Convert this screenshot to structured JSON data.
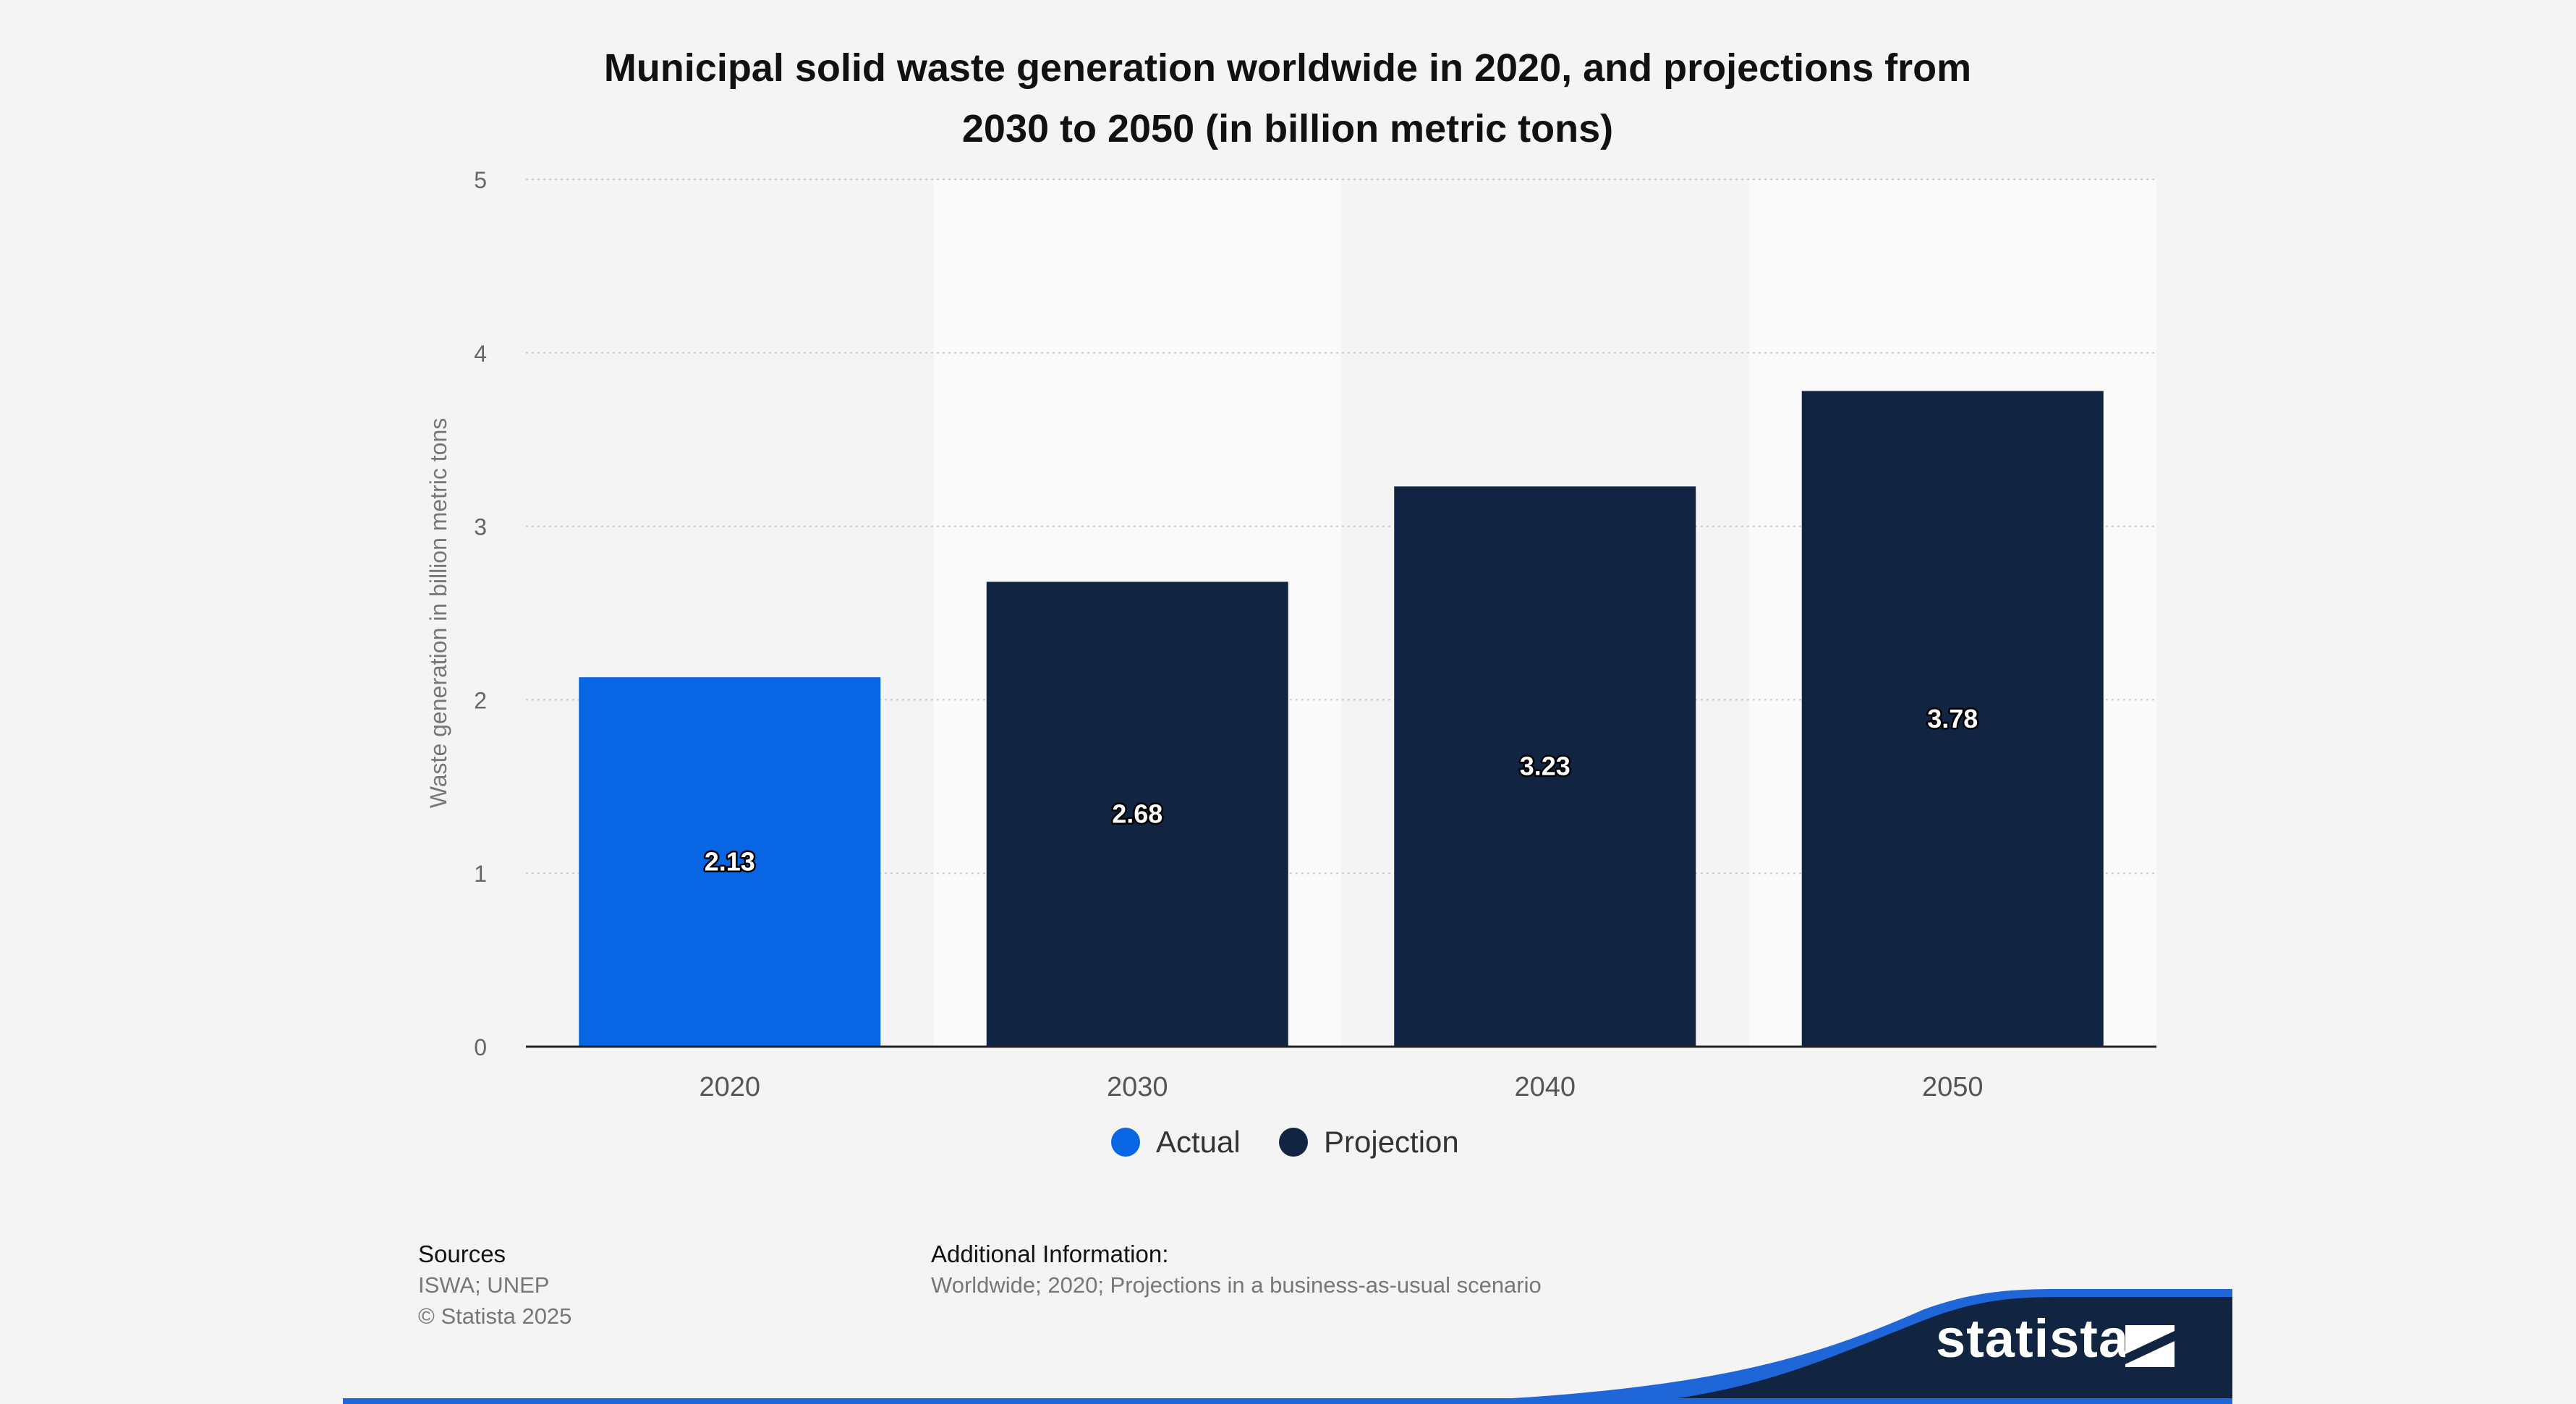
{
  "chart_data": {
    "type": "bar",
    "title_lines": [
      "Municipal solid waste generation worldwide in 2020, and projections from",
      "2030 to 2050 (in billion metric tons)"
    ],
    "categories": [
      "2020",
      "2030",
      "2040",
      "2050"
    ],
    "values": [
      2.13,
      2.68,
      3.23,
      3.78
    ],
    "value_labels": [
      "2.13",
      "2.68",
      "3.23",
      "3.78"
    ],
    "series_of_bar": [
      "Actual",
      "Projection",
      "Projection",
      "Projection"
    ],
    "ylabel": "Waste generation in billion metric tons",
    "xlabel": "",
    "ylim": [
      0,
      5
    ],
    "yticks": [
      "0",
      "1",
      "2",
      "3",
      "4",
      "5"
    ],
    "legend": [
      {
        "name": "Actual",
        "color": "#0866e4"
      },
      {
        "name": "Projection",
        "color": "#112441"
      }
    ],
    "grid": true
  },
  "footer": {
    "sources_heading": "Sources",
    "sources_text": "ISWA; UNEP",
    "copyright": "© Statista 2025",
    "additional_heading": "Additional Information:",
    "additional_text": "Worldwide; 2020; Projections in a business-as-usual scenario"
  },
  "brand": {
    "name": "statista",
    "logo_icon": "statista-logo-icon",
    "colors": {
      "navy": "#112441",
      "blue": "#1f67d9",
      "actual": "#0866e4"
    }
  }
}
